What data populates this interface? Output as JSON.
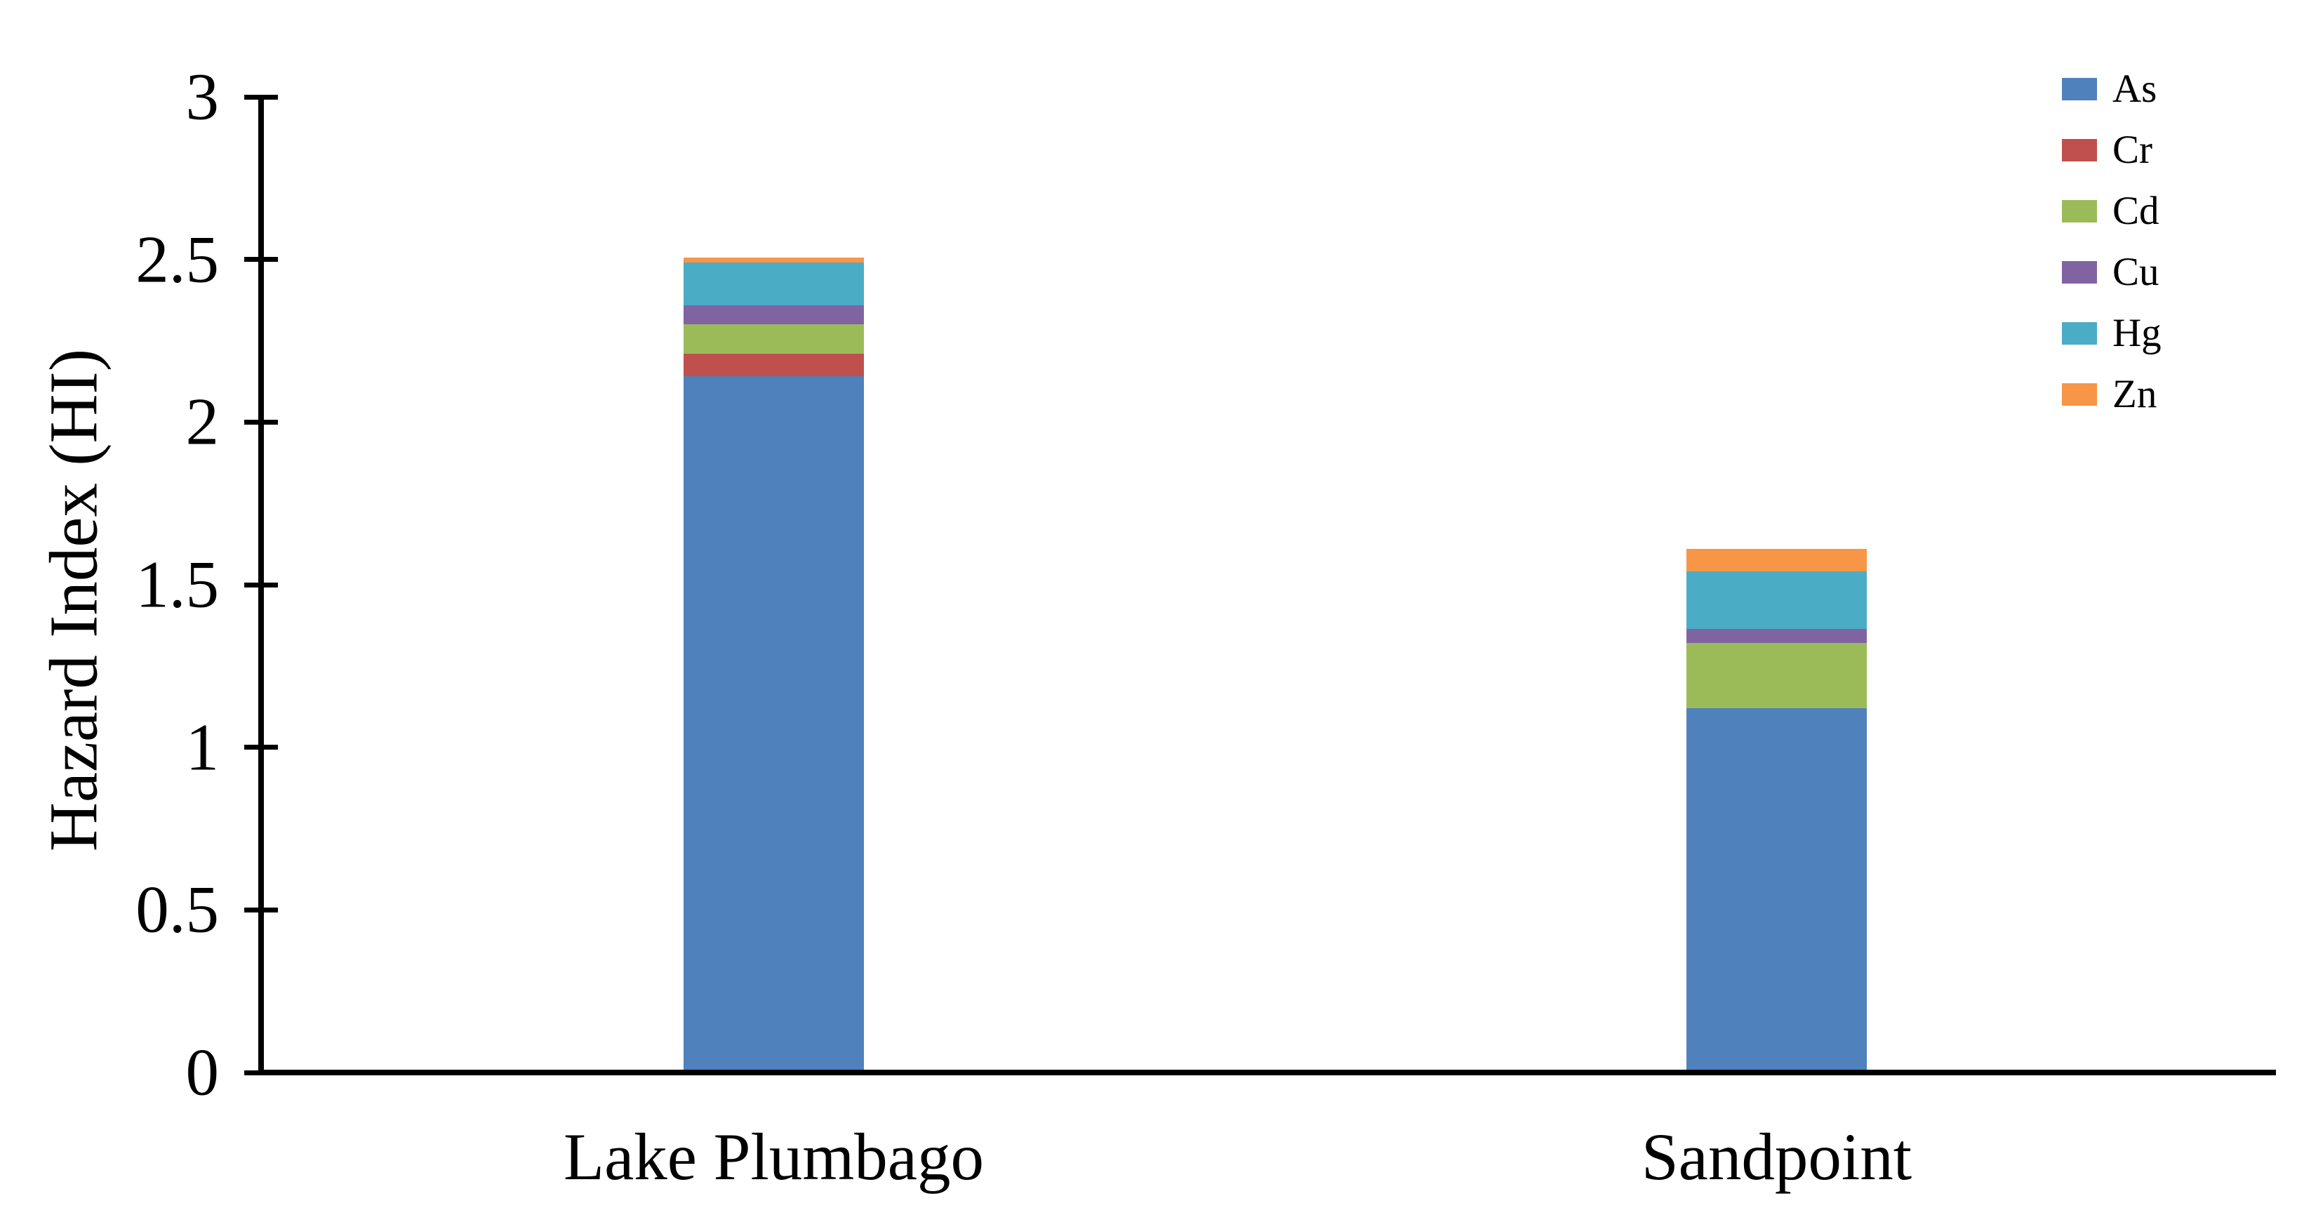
{
  "chart_data": {
    "type": "bar",
    "stacked": true,
    "title": "",
    "xlabel": "",
    "ylabel": "Hazard Index (HI)",
    "categories": [
      "Lake Plumbago",
      "Sandpoint"
    ],
    "series": [
      {
        "name": "As",
        "color": "#4F81BD",
        "values": [
          2.14,
          1.12
        ]
      },
      {
        "name": "Cr",
        "color": "#C0504D",
        "values": [
          0.07,
          0
        ]
      },
      {
        "name": "Cd",
        "color": "#9BBB59",
        "values": [
          0.09,
          0.2
        ]
      },
      {
        "name": "Cu",
        "color": "#8064A2",
        "values": [
          0.06,
          0.045
        ]
      },
      {
        "name": "Hg",
        "color": "#4BACC6",
        "values": [
          0.13,
          0.175
        ]
      },
      {
        "name": "Zn",
        "color": "#F79646",
        "values": [
          0.015,
          0.07
        ]
      }
    ],
    "stack_totals": [
      2.505,
      1.61
    ],
    "ylim": [
      0,
      3
    ],
    "yticks": [
      0,
      0.5,
      1,
      1.5,
      2,
      2.5,
      3
    ],
    "ytick_labels": [
      "0",
      "0.5",
      "1",
      "1.5",
      "2",
      "2.5",
      "3"
    ],
    "grid": false,
    "legend_position": "top-right",
    "axis_color": "#000000",
    "text_color": "#000000",
    "background_color": "#FFFFFF"
  }
}
